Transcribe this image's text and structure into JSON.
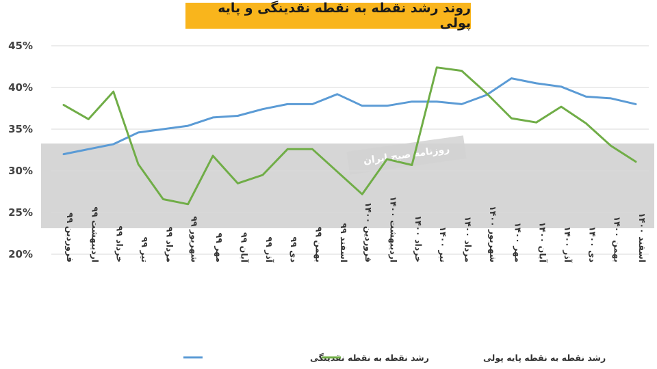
{
  "chart_data": {
    "type": "line",
    "title": "روند رشد نقطه به نقطه نقدینگی و پایه پولی",
    "xlabel": "",
    "ylabel": "",
    "ylim": [
      20,
      45
    ],
    "yticks": [
      "20%",
      "25%",
      "30%",
      "35%",
      "40%",
      "45%"
    ],
    "ytick_values": [
      20,
      25,
      30,
      35,
      40,
      45
    ],
    "grid": true,
    "legend_position": "bottom",
    "categories": [
      "فروردین ۹۹",
      "اردیبهشت ۹۹",
      "خرداد ۹۹",
      "تیر ۹۹",
      "مرداد ۹۹",
      "شهریور ۹۹",
      "مهر ۹۹",
      "آبان ۹۹",
      "آذر ۹۹",
      "دی ۹۹",
      "بهمن ۹۹",
      "اسفند ۹۹",
      "فروردین ۱۴۰۰",
      "اردیبهشت ۱۴۰۰",
      "خرداد ۱۴۰۰",
      "تیر ۱۴۰۰",
      "مرداد ۱۴۰۰",
      "شهریور ۱۴۰۰",
      "مهر ۱۴۰۰",
      "آبان ۱۴۰۰",
      "آذر ۱۴۰۰",
      "دی ۱۴۰۰",
      "بهمن ۱۴۰۰",
      "اسفند ۱۴۰۰"
    ],
    "series": [
      {
        "name": "رشد نقطه به نقطه نقدینگی",
        "color": "#5b9bd5",
        "values": [
          32.0,
          32.6,
          33.2,
          34.6,
          35.0,
          35.4,
          36.4,
          36.6,
          37.4,
          38.0,
          38.0,
          39.2,
          37.8,
          37.8,
          38.3,
          38.3,
          38.0,
          39.1,
          41.1,
          40.5,
          40.1,
          38.9,
          38.7,
          38.0
        ]
      },
      {
        "name": "رشد نقطه به نقطه پایه پولی",
        "color": "#70ad47",
        "values": [
          37.9,
          36.2,
          39.5,
          30.8,
          26.6,
          26.0,
          31.8,
          28.5,
          29.5,
          32.6,
          32.6,
          29.9,
          27.2,
          31.4,
          30.7,
          42.4,
          42.0,
          39.3,
          36.3,
          35.8,
          37.7,
          35.7,
          33.0,
          31.1
        ]
      }
    ]
  },
  "watermark": {
    "label": "روزنامه صبح ایران"
  }
}
